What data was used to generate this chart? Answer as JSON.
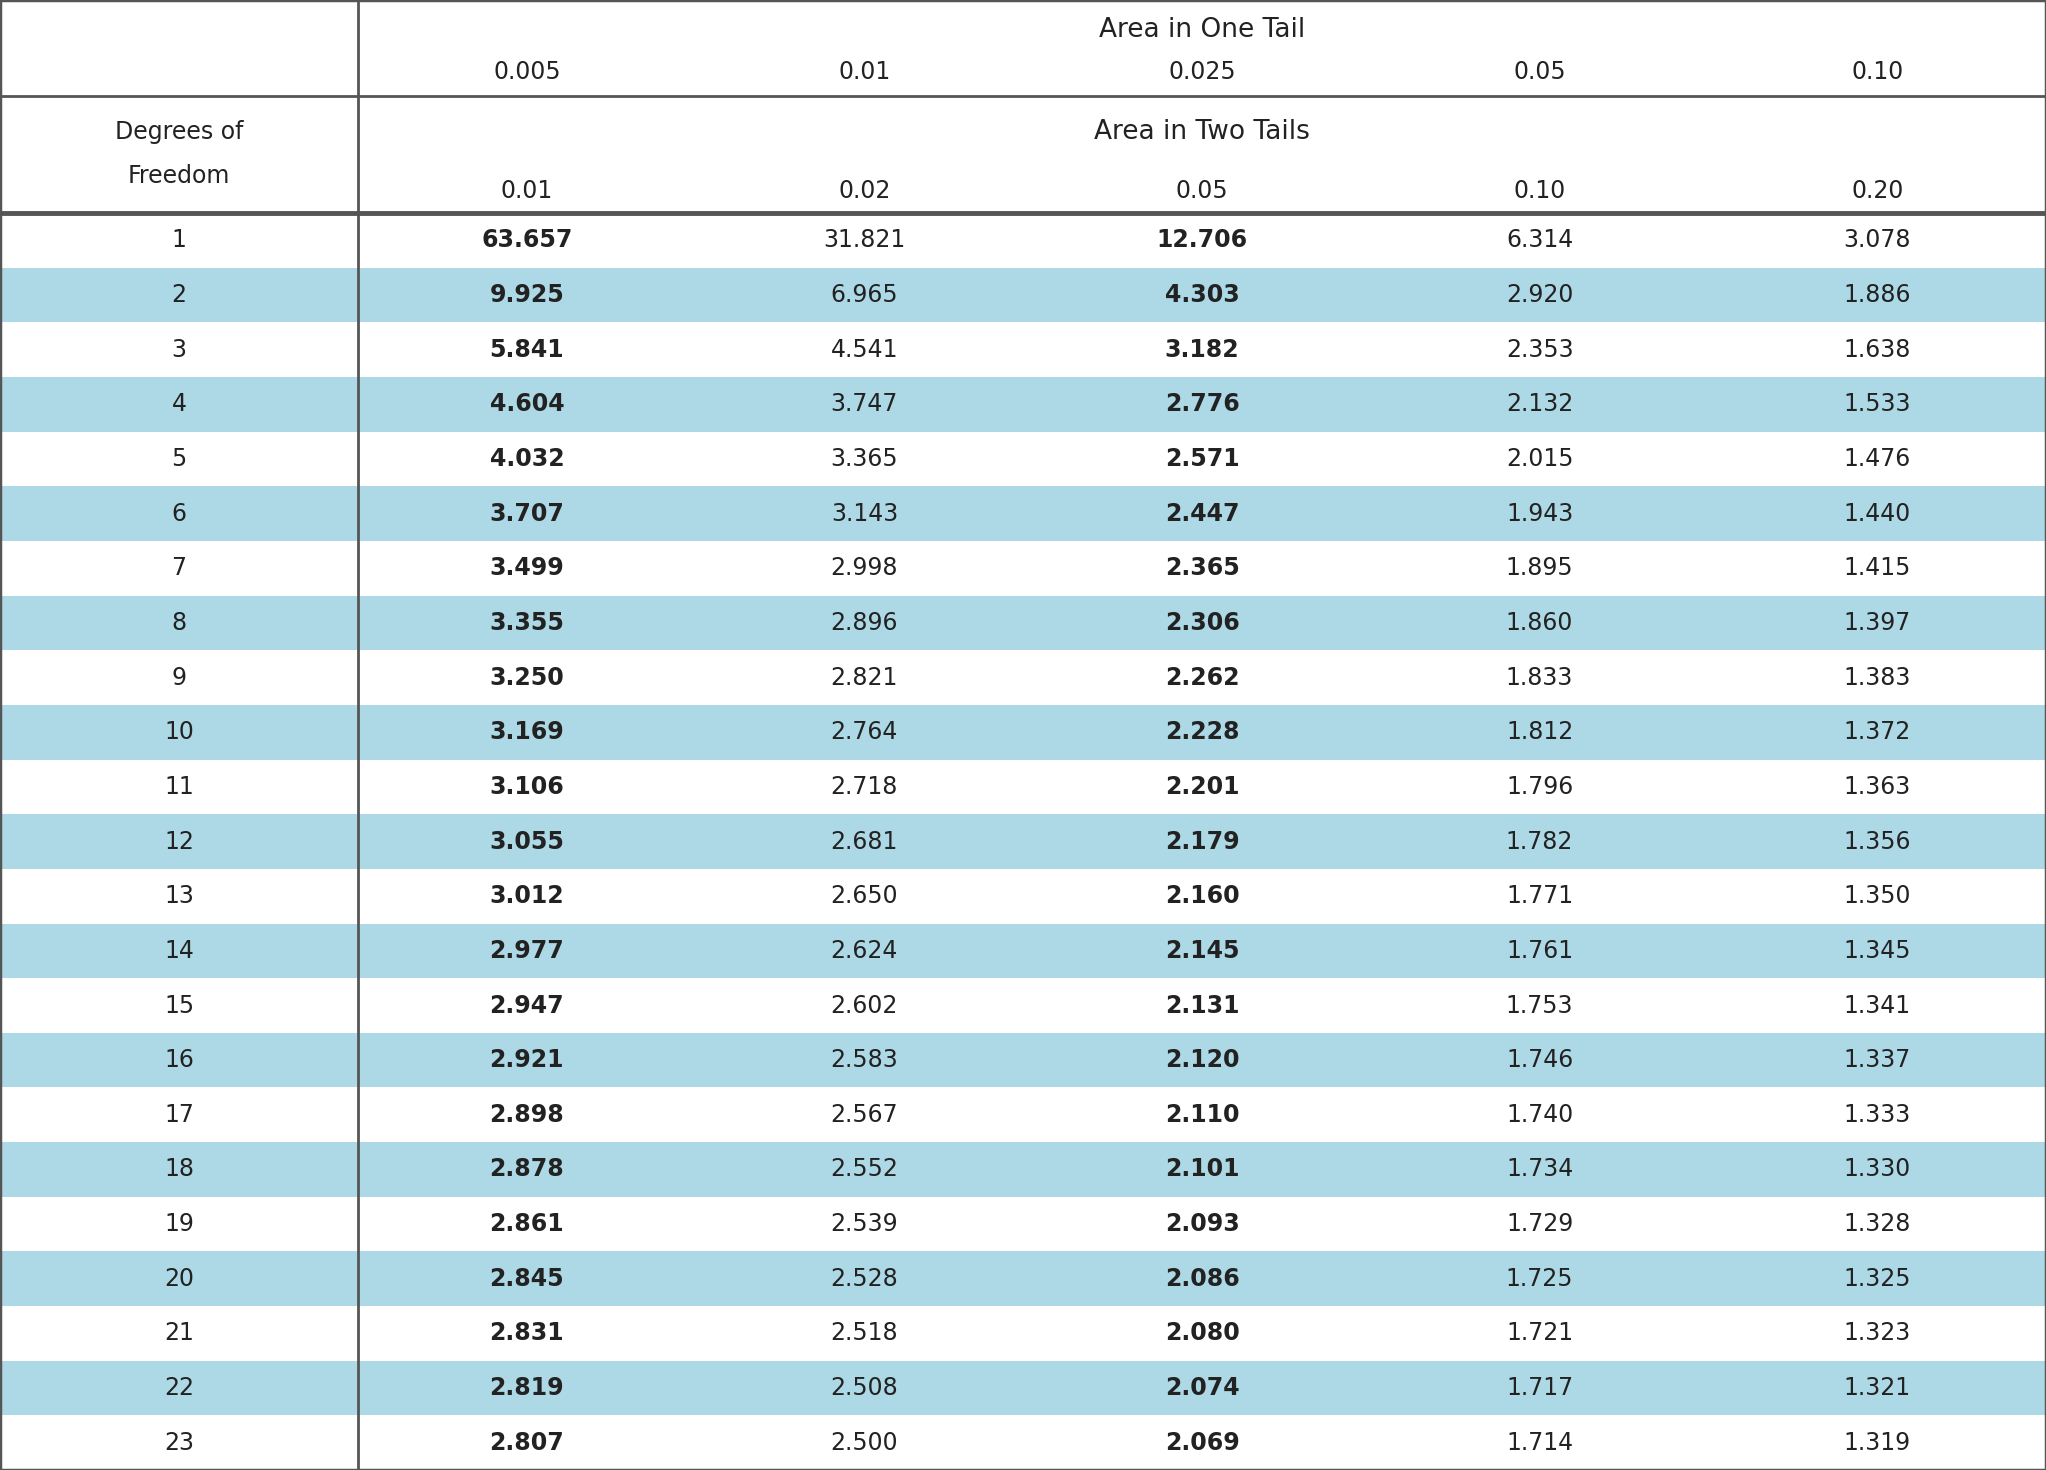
{
  "one_tail_header": "Area in One Tail",
  "one_tail_values": [
    "0.005",
    "0.01",
    "0.025",
    "0.05",
    "0.10"
  ],
  "two_tail_header": "Area in Two Tails",
  "two_tail_values": [
    "0.01",
    "0.02",
    "0.05",
    "0.10",
    "0.20"
  ],
  "df_header_line1": "Degrees of",
  "df_header_line2": "Freedom",
  "degrees": [
    1,
    2,
    3,
    4,
    5,
    6,
    7,
    8,
    9,
    10,
    11,
    12,
    13,
    14,
    15,
    16,
    17,
    18,
    19,
    20,
    21,
    22,
    23
  ],
  "col0": [
    "63.657",
    "9.925",
    "5.841",
    "4.604",
    "4.032",
    "3.707",
    "3.499",
    "3.355",
    "3.250",
    "3.169",
    "3.106",
    "3.055",
    "3.012",
    "2.977",
    "2.947",
    "2.921",
    "2.898",
    "2.878",
    "2.861",
    "2.845",
    "2.831",
    "2.819",
    "2.807"
  ],
  "col1": [
    "31.821",
    "6.965",
    "4.541",
    "3.747",
    "3.365",
    "3.143",
    "2.998",
    "2.896",
    "2.821",
    "2.764",
    "2.718",
    "2.681",
    "2.650",
    "2.624",
    "2.602",
    "2.583",
    "2.567",
    "2.552",
    "2.539",
    "2.528",
    "2.518",
    "2.508",
    "2.500"
  ],
  "col2": [
    "12.706",
    "4.303",
    "3.182",
    "2.776",
    "2.571",
    "2.447",
    "2.365",
    "2.306",
    "2.262",
    "2.228",
    "2.201",
    "2.179",
    "2.160",
    "2.145",
    "2.131",
    "2.120",
    "2.110",
    "2.101",
    "2.093",
    "2.086",
    "2.080",
    "2.074",
    "2.069"
  ],
  "col3": [
    "6.314",
    "2.920",
    "2.353",
    "2.132",
    "2.015",
    "1.943",
    "1.895",
    "1.860",
    "1.833",
    "1.812",
    "1.796",
    "1.782",
    "1.771",
    "1.761",
    "1.753",
    "1.746",
    "1.740",
    "1.734",
    "1.729",
    "1.725",
    "1.721",
    "1.717",
    "1.714"
  ],
  "col4": [
    "3.078",
    "1.886",
    "1.638",
    "1.533",
    "1.476",
    "1.440",
    "1.415",
    "1.397",
    "1.383",
    "1.372",
    "1.363",
    "1.356",
    "1.350",
    "1.345",
    "1.341",
    "1.337",
    "1.333",
    "1.330",
    "1.328",
    "1.325",
    "1.323",
    "1.321",
    "1.319"
  ],
  "bold_cols": [
    0,
    2
  ],
  "light_blue": "#add8e6",
  "white": "#ffffff",
  "bg_color": "#ffffff",
  "border_color": "#555555",
  "text_color": "#222222",
  "header_bg": "#ffffff"
}
